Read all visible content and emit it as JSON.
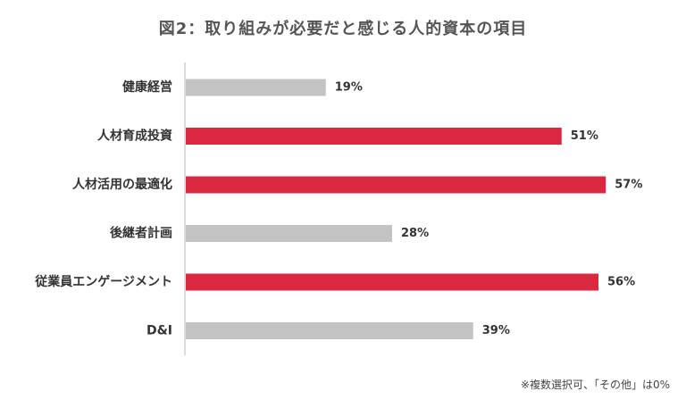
{
  "chart_data": {
    "type": "bar",
    "orientation": "horizontal",
    "title": "図2：取り組みが必要だと感じる人的資本の項目",
    "categories": [
      "健康経営",
      "人材育成投資",
      "人材活用の最適化",
      "後継者計画",
      "従業員エンゲージメント",
      "D&I"
    ],
    "values": [
      19,
      51,
      57,
      28,
      56,
      39
    ],
    "value_labels": [
      "19%",
      "51%",
      "57%",
      "28%",
      "56%",
      "39%"
    ],
    "highlighted": [
      false,
      true,
      true,
      false,
      true,
      false
    ],
    "xlim": [
      0,
      60
    ],
    "unit": "%",
    "grid": false,
    "legend": "none",
    "note": "※複数選択可、「その他」は0%"
  },
  "colors": {
    "highlight": "#d9283f",
    "default": "#c3c3c3",
    "axis": "#d0d0d0"
  }
}
